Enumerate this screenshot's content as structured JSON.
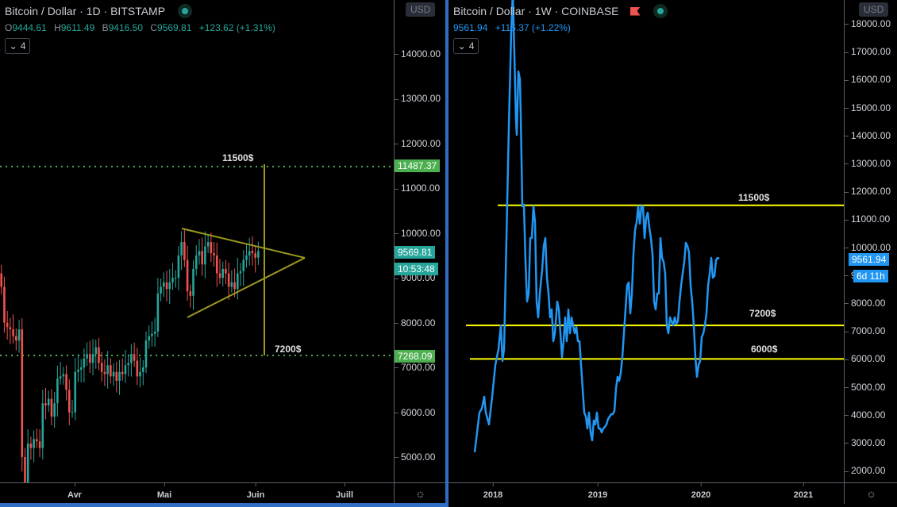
{
  "left_chart": {
    "title": {
      "symbol": "Bitcoin / Dollar",
      "sep1": " · ",
      "interval": "1D",
      "sep2": " · ",
      "exchange": "BITSTAMP"
    },
    "ohlc": {
      "o_label": "O",
      "o": "9444.61",
      "h_label": "H",
      "h": "9611.49",
      "b_label": "B",
      "b": "9416.50",
      "c_label": "C",
      "c": "9569.81",
      "change": "+123.62 (+1.31%)"
    },
    "indicators_count": "4",
    "currency": "USD",
    "price_axis": [
      "14000.00",
      "13000.00",
      "12000.00",
      "11000.00",
      "10000.00",
      "9000.00",
      "8000.00",
      "7000.00",
      "6000.00",
      "5000.00"
    ],
    "price_tags": {
      "resistance": "11487.37",
      "last": "9569.81",
      "countdown": "10:53:48",
      "support": "7268.09"
    },
    "time_axis": [
      "Avr",
      "Mai",
      "Juin",
      "Juill"
    ],
    "annotations": {
      "top": "11500$",
      "bottom": "7200$"
    },
    "colors": {
      "up": "#26a69a",
      "down": "#ef5350",
      "pattern": "#9a9a1c",
      "level": "#4caf50"
    }
  },
  "right_chart": {
    "title": {
      "symbol": "Bitcoin / Dollar",
      "sep1": " · ",
      "interval": "1W",
      "sep2": " · ",
      "exchange": "COINBASE"
    },
    "quote": {
      "price": "9561.94",
      "change": "+115.37 (+1.22%)"
    },
    "indicators_count": "4",
    "currency": "USD",
    "price_axis": [
      "18000.00",
      "17000.00",
      "16000.00",
      "15000.00",
      "14000.00",
      "13000.00",
      "12000.00",
      "11000.00",
      "10000.00",
      "9000.00",
      "8000.00",
      "7000.00",
      "6000.00",
      "5000.00",
      "4000.00",
      "3000.00",
      "2000.00"
    ],
    "price_tags": {
      "last": "9561.94",
      "countdown": "6d 11h"
    },
    "time_axis": [
      "2018",
      "2019",
      "2020",
      "2021"
    ],
    "annotations": {
      "top": "11500$",
      "mid": "7200$",
      "bottom": "6000$"
    },
    "colors": {
      "line": "#2196f3",
      "levels": "#ffff00"
    }
  },
  "chart_data": [
    {
      "type": "candlestick",
      "title": "Bitcoin / Dollar · 1D · BITSTAMP",
      "xlabel": "",
      "ylabel": "USD",
      "x_ticks": [
        "Avr",
        "Mai",
        "Juin",
        "Juill"
      ],
      "ylim": [
        4700,
        15000
      ],
      "last_close": 9569.81,
      "horizontal_levels": [
        11487.37,
        7268.09
      ],
      "annotations": [
        "11500$ (target)",
        "7200$ (target)",
        "symmetrical triangle"
      ],
      "approx_series": {
        "start_mar": {
          "open": 8800,
          "close": 5000
        },
        "mid_mar_low": 3900,
        "end_apr": 7700,
        "early_may_high": 10050,
        "late_may": 8800,
        "last": 9569.81
      }
    },
    {
      "type": "line",
      "title": "Bitcoin / Dollar · 1W · COINBASE",
      "xlabel": "",
      "ylabel": "USD",
      "x_ticks": [
        "2018",
        "2019",
        "2020",
        "2021"
      ],
      "ylim": [
        1700,
        18300
      ],
      "horizontal_levels": [
        11500,
        7200,
        6000
      ],
      "approx_points": [
        [
          "2017-10",
          2900
        ],
        [
          "2017-11",
          6000
        ],
        [
          "2017-12",
          18000
        ],
        [
          "2018-01",
          11500
        ],
        [
          "2018-02",
          8600
        ],
        [
          "2018-03",
          11500
        ],
        [
          "2018-04",
          6900
        ],
        [
          "2018-05",
          9500
        ],
        [
          "2018-06",
          6200
        ],
        [
          "2018-07",
          8200
        ],
        [
          "2018-08",
          6300
        ],
        [
          "2018-09",
          6500
        ],
        [
          "2018-10",
          6400
        ],
        [
          "2018-11",
          4000
        ],
        [
          "2018-12",
          3300
        ],
        [
          "2019-01",
          3600
        ],
        [
          "2019-03",
          4000
        ],
        [
          "2019-04",
          5300
        ],
        [
          "2019-05",
          8600
        ],
        [
          "2019-06",
          11300
        ],
        [
          "2019-07",
          9600
        ],
        [
          "2019-08",
          10300
        ],
        [
          "2019-09",
          8200
        ],
        [
          "2019-10",
          9200
        ],
        [
          "2019-11",
          7200
        ],
        [
          "2019-12",
          7300
        ],
        [
          "2020-02",
          10200
        ],
        [
          "2020-03",
          5400
        ],
        [
          "2020-04",
          7500
        ],
        [
          "2020-05",
          9600
        ],
        [
          "2020-06",
          9561.94
        ]
      ]
    }
  ]
}
